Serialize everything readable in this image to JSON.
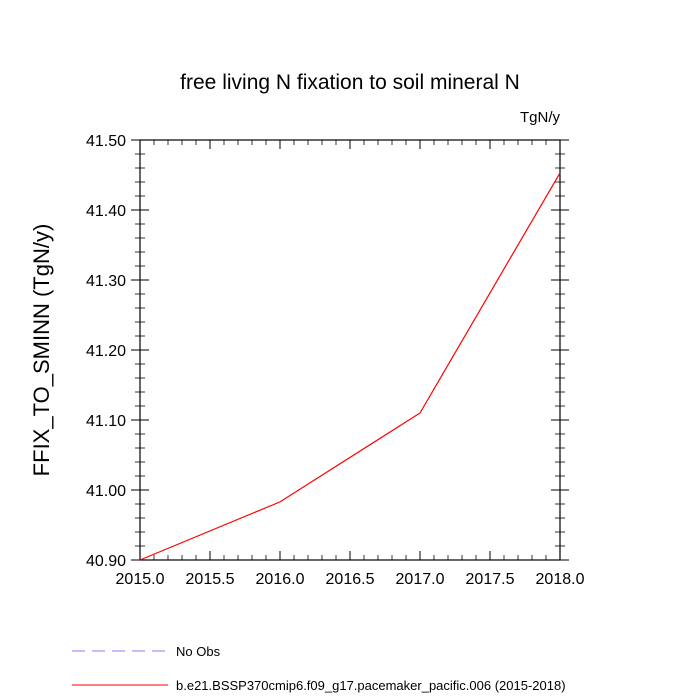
{
  "chart_data": {
    "type": "line",
    "title": "free living N fixation to soil mineral N",
    "units_label": "TgN/y",
    "xlabel": "",
    "ylabel": "FFIX_TO_SMINN  (TgN/y)",
    "xlim": [
      2015.0,
      2018.0
    ],
    "ylim": [
      40.9,
      41.5
    ],
    "x_ticks": [
      2015.0,
      2015.5,
      2016.0,
      2016.5,
      2017.0,
      2017.5,
      2018.0
    ],
    "x_tick_labels": [
      "2015.0",
      "2015.5",
      "2016.0",
      "2016.5",
      "2017.0",
      "2017.5",
      "2018.0"
    ],
    "y_ticks": [
      40.9,
      41.0,
      41.1,
      41.2,
      41.3,
      41.4,
      41.5
    ],
    "y_tick_labels": [
      "40.90",
      "41.00",
      "41.10",
      "41.20",
      "41.30",
      "41.40",
      "41.50"
    ],
    "grid": false,
    "series": [
      {
        "name": "b.e21.BSSP370cmip6.f09_g17.pacemaker_pacific.006 (2015-2018)",
        "color": "#ff0000",
        "dash": "solid",
        "x": [
          2015.0,
          2016.0,
          2017.0,
          2018.0
        ],
        "values": [
          40.9,
          40.983,
          41.11,
          41.453
        ]
      }
    ],
    "legend": [
      {
        "label": "No Obs",
        "color": "#8080ff",
        "dash": "dashed"
      },
      {
        "label": "b.e21.BSSP370cmip6.f09_g17.pacemaker_pacific.006 (2015-2018)",
        "color": "#ff0000",
        "dash": "solid"
      }
    ],
    "legend_position": "bottom"
  }
}
